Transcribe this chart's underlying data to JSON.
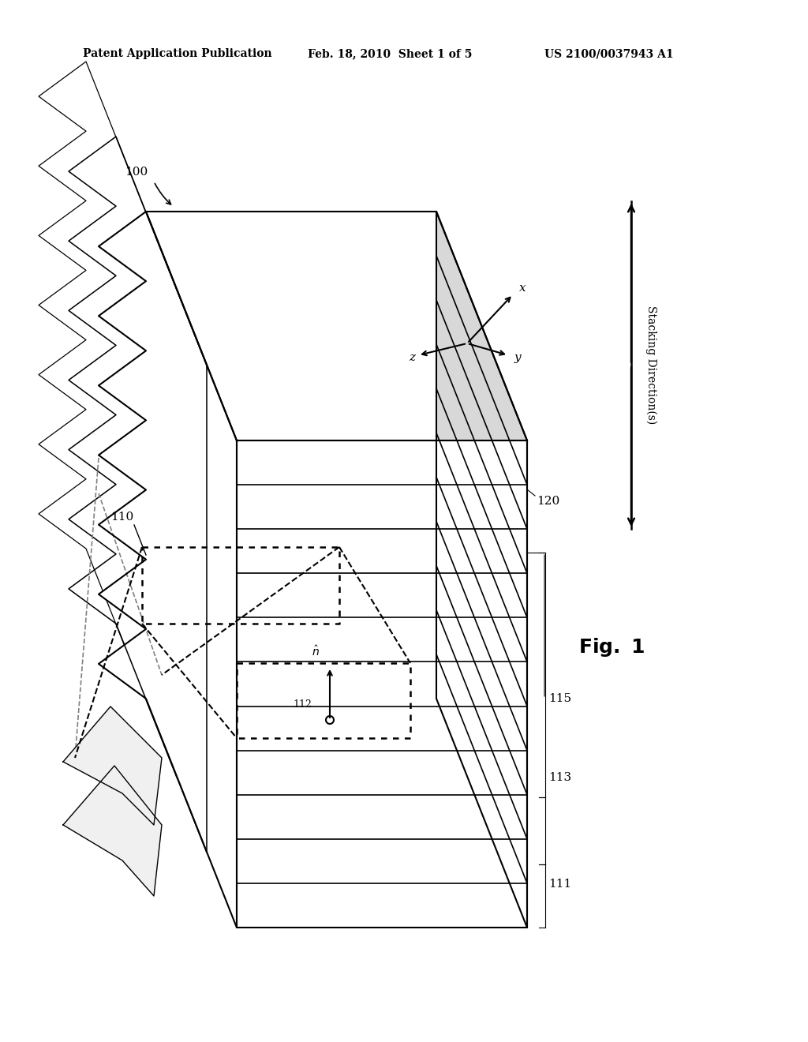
{
  "bg_color": "#ffffff",
  "line_color": "#000000",
  "header_left": "Patent Application Publication",
  "header_mid": "Feb. 18, 2010  Sheet 1 of 5",
  "header_right": "US 2100/0037943 A1",
  "fig_label": "Fig. 1",
  "label_100": "100",
  "label_110": "110",
  "label_111": "111",
  "label_113": "113",
  "label_115": "115",
  "label_120": "120",
  "label_112": "112",
  "stacking_label": "Stacking Direction(s)"
}
